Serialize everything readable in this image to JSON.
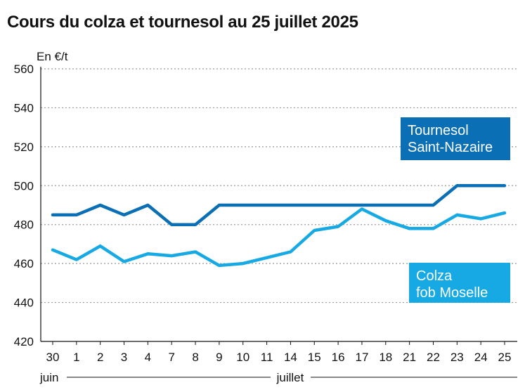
{
  "title": "Cours du colza et tournesol au 25 juillet 2025",
  "chart_data": {
    "type": "line",
    "title": "Cours du colza et tournesol au 25 juillet 2025",
    "ylabel": "En €/t",
    "xlabel": "",
    "ylim": [
      420,
      560
    ],
    "yticks": [
      420,
      440,
      460,
      480,
      500,
      520,
      540,
      560
    ],
    "categories": [
      "30",
      "1",
      "2",
      "3",
      "4",
      "7",
      "8",
      "9",
      "10",
      "11",
      "14",
      "15",
      "16",
      "17",
      "18",
      "21",
      "22",
      "23",
      "24",
      "25"
    ],
    "month_groups": [
      {
        "label": "juin",
        "from": 0,
        "to": 0
      },
      {
        "label": "juillet",
        "from": 1,
        "to": 19
      }
    ],
    "grid": true,
    "series": [
      {
        "name": "Tournesol Saint-Nazaire",
        "legend_lines": [
          "Tournesol",
          "Saint-Nazaire"
        ],
        "color": "#0a6fb5",
        "values": [
          485,
          485,
          490,
          485,
          490,
          480,
          480,
          490,
          490,
          490,
          490,
          490,
          490,
          490,
          490,
          490,
          490,
          500,
          500,
          500
        ]
      },
      {
        "name": "Colza fob Moselle",
        "legend_lines": [
          "Colza",
          "fob Moselle"
        ],
        "color": "#16a9e3",
        "values": [
          467,
          462,
          469,
          461,
          465,
          464,
          466,
          459,
          460,
          463,
          466,
          477,
          479,
          488,
          482,
          478,
          478,
          485,
          483,
          486
        ]
      }
    ]
  }
}
